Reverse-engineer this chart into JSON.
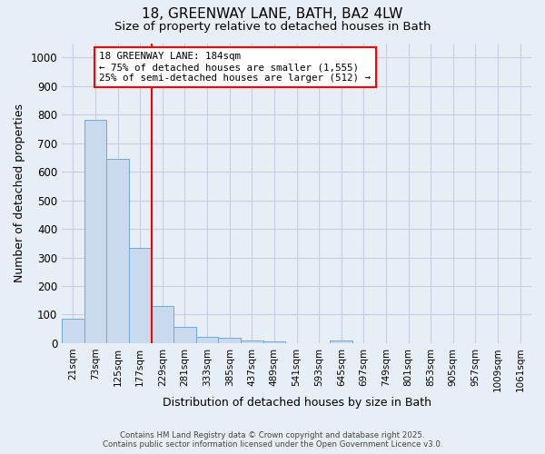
{
  "title_line1": "18, GREENWAY LANE, BATH, BA2 4LW",
  "title_line2": "Size of property relative to detached houses in Bath",
  "xlabel": "Distribution of detached houses by size in Bath",
  "ylabel": "Number of detached properties",
  "bar_color": "#c9d9ee",
  "bar_edge_color": "#6fa8d6",
  "categories": [
    "21sqm",
    "73sqm",
    "125sqm",
    "177sqm",
    "229sqm",
    "281sqm",
    "333sqm",
    "385sqm",
    "437sqm",
    "489sqm",
    "541sqm",
    "593sqm",
    "645sqm",
    "697sqm",
    "749sqm",
    "801sqm",
    "853sqm",
    "905sqm",
    "957sqm",
    "1009sqm",
    "1061sqm"
  ],
  "values": [
    85,
    780,
    645,
    335,
    130,
    58,
    23,
    18,
    10,
    5,
    0,
    0,
    8,
    0,
    0,
    0,
    0,
    0,
    0,
    0,
    0
  ],
  "ylim": [
    0,
    1050
  ],
  "yticks": [
    0,
    100,
    200,
    300,
    400,
    500,
    600,
    700,
    800,
    900,
    1000
  ],
  "red_line_x": 3.5,
  "annotation_line1": "18 GREENWAY LANE: 184sqm",
  "annotation_line2": "← 75% of detached houses are smaller (1,555)",
  "annotation_line3": "25% of semi-detached houses are larger (512) →",
  "footnote1": "Contains HM Land Registry data © Crown copyright and database right 2025.",
  "footnote2": "Contains public sector information licensed under the Open Government Licence v3.0.",
  "fig_bg_color": "#e8eef5",
  "plot_bg_color": "#e8eef5",
  "grid_color": "#c5cfe0",
  "ann_box_bg": "#ffffff"
}
